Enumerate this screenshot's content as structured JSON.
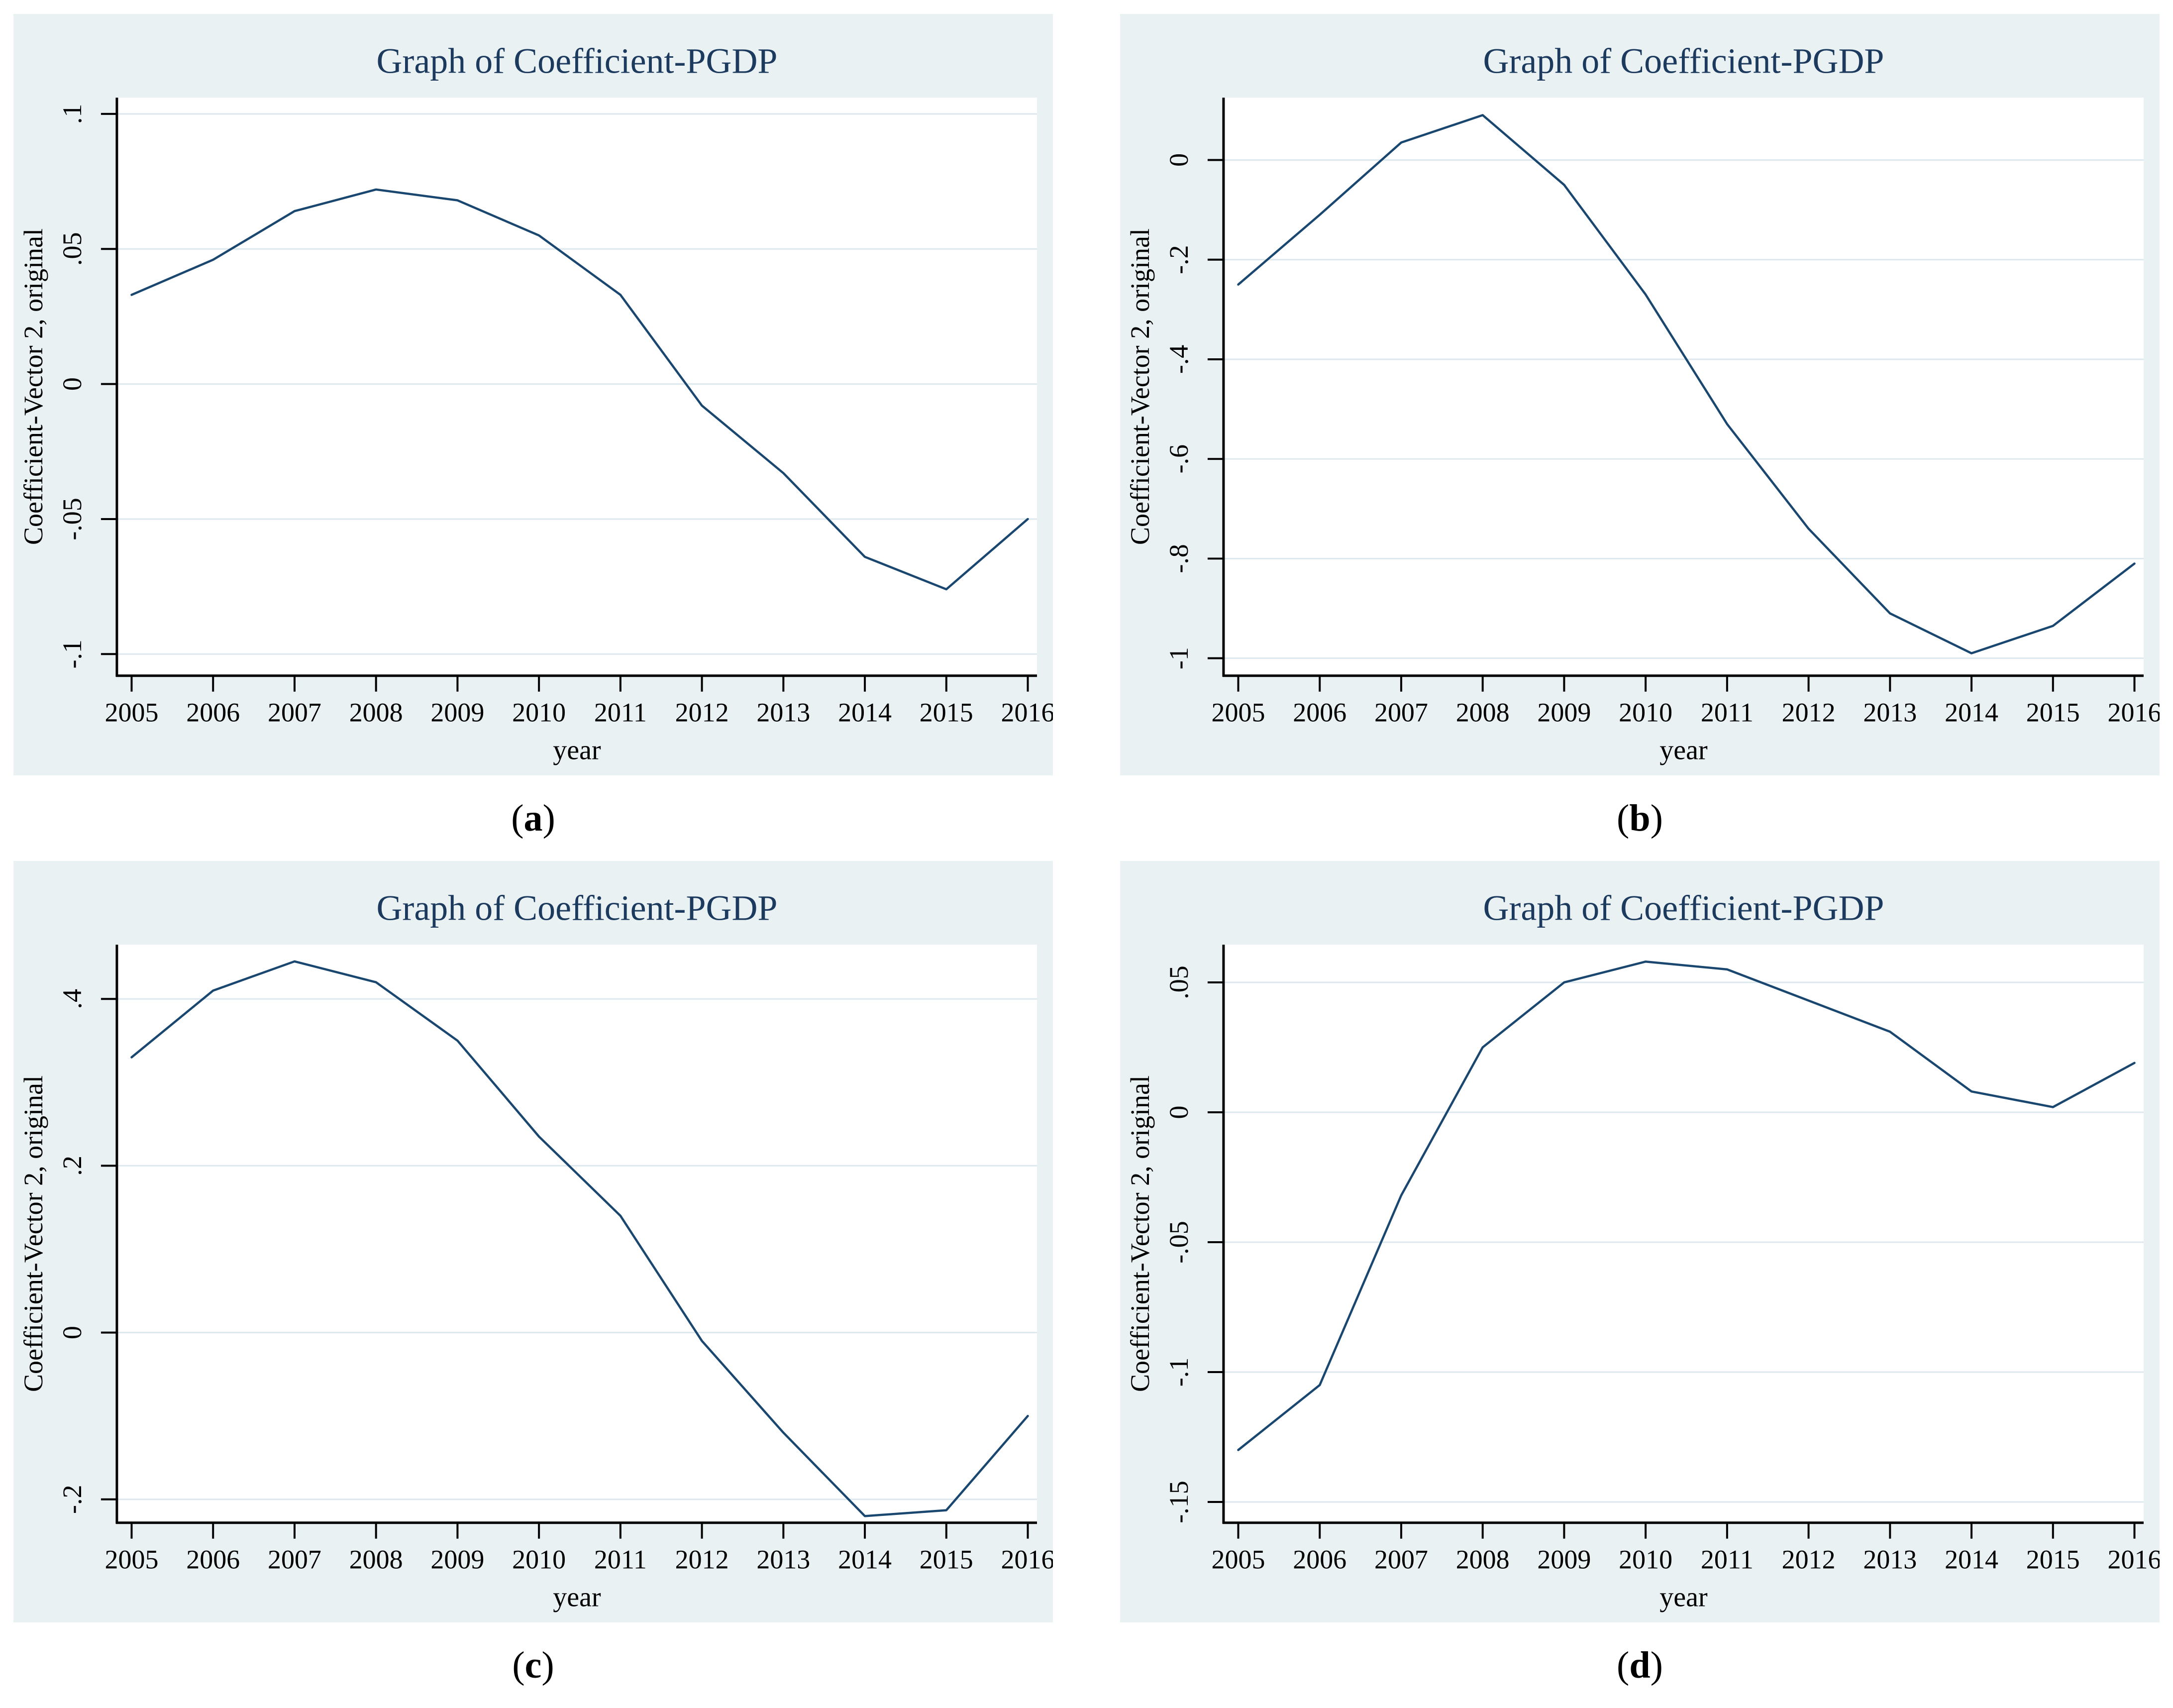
{
  "styles": {
    "panel_background": "#eaf1f3",
    "plot_background": "#ffffff",
    "grid_color": "#dde9ee",
    "line_color": "#1a476f",
    "title_color": "#1b3a5e",
    "text_color": "#000000",
    "axis_color": "#000000"
  },
  "chart_data": [
    {
      "type": "line",
      "title": "Graph of Coefficient-PGDP",
      "xlabel": "year",
      "ylabel": "Coefficient-Vector 2, original",
      "legend": "none",
      "grid": true,
      "x": [
        2005,
        2006,
        2007,
        2008,
        2009,
        2010,
        2011,
        2012,
        2013,
        2014,
        2015,
        2016
      ],
      "values": [
        0.033,
        0.046,
        0.064,
        0.072,
        0.068,
        0.055,
        0.033,
        -0.008,
        -0.033,
        -0.064,
        -0.076,
        -0.05
      ],
      "yticks": [
        {
          "v": 0.1,
          "label": ".1"
        },
        {
          "v": 0.05,
          "label": ".05"
        },
        {
          "v": 0,
          "label": "0"
        },
        {
          "v": -0.05,
          "label": "-.05"
        },
        {
          "v": -0.1,
          "label": "-.1"
        }
      ],
      "ydomain": [
        -0.108,
        0.106
      ],
      "caption": {
        "open": "(",
        "letter": "a",
        "close": ")"
      }
    },
    {
      "type": "line",
      "title": "Graph of Coefficient-PGDP",
      "xlabel": "year",
      "ylabel": "Coefficient-Vector 2, original",
      "legend": "none",
      "grid": true,
      "x": [
        2005,
        2006,
        2007,
        2008,
        2009,
        2010,
        2011,
        2012,
        2013,
        2014,
        2015,
        2016
      ],
      "values": [
        -0.25,
        -0.11,
        0.035,
        0.09,
        -0.05,
        -0.27,
        -0.53,
        -0.74,
        -0.91,
        -0.99,
        -0.935,
        -0.81
      ],
      "yticks": [
        {
          "v": 0,
          "label": "0"
        },
        {
          "v": -0.2,
          "label": "-.2"
        },
        {
          "v": -0.4,
          "label": "-.4"
        },
        {
          "v": -0.6,
          "label": "-.6"
        },
        {
          "v": -0.8,
          "label": "-.8"
        },
        {
          "v": -1,
          "label": "-1"
        }
      ],
      "ydomain": [
        -1.035,
        0.125
      ],
      "caption": {
        "open": "(",
        "letter": "b",
        "close": ")"
      }
    },
    {
      "type": "line",
      "title": "Graph of Coefficient-PGDP",
      "xlabel": "year",
      "ylabel": "Coefficient-Vector 2, original",
      "legend": "none",
      "grid": true,
      "x": [
        2005,
        2006,
        2007,
        2008,
        2009,
        2010,
        2011,
        2012,
        2013,
        2014,
        2015,
        2016
      ],
      "values": [
        0.33,
        0.41,
        0.445,
        0.42,
        0.35,
        0.235,
        0.14,
        -0.01,
        -0.12,
        -0.22,
        -0.213,
        -0.1
      ],
      "yticks": [
        {
          "v": 0.4,
          "label": ".4"
        },
        {
          "v": 0.2,
          "label": ".2"
        },
        {
          "v": 0,
          "label": "0"
        },
        {
          "v": -0.2,
          "label": "-.2"
        }
      ],
      "ydomain": [
        -0.228,
        0.465
      ],
      "caption": {
        "open": "(",
        "letter": "c",
        "close": ")"
      }
    },
    {
      "type": "line",
      "title": "Graph of Coefficient-PGDP",
      "xlabel": "year",
      "ylabel": "Coefficient-Vector 2, original",
      "legend": "none",
      "grid": true,
      "x": [
        2005,
        2006,
        2007,
        2008,
        2009,
        2010,
        2011,
        2012,
        2013,
        2014,
        2015,
        2016
      ],
      "values": [
        -0.13,
        -0.105,
        -0.032,
        0.025,
        0.05,
        0.058,
        0.055,
        0.043,
        0.031,
        0.008,
        0.002,
        0.019
      ],
      "yticks": [
        {
          "v": 0.05,
          "label": ".05"
        },
        {
          "v": 0,
          "label": "0"
        },
        {
          "v": -0.05,
          "label": "-.05"
        },
        {
          "v": -0.1,
          "label": "-.1"
        },
        {
          "v": -0.15,
          "label": "-.15"
        }
      ],
      "ydomain": [
        -0.158,
        0.0645
      ],
      "caption": {
        "open": "(",
        "letter": "d",
        "close": ")"
      }
    }
  ]
}
